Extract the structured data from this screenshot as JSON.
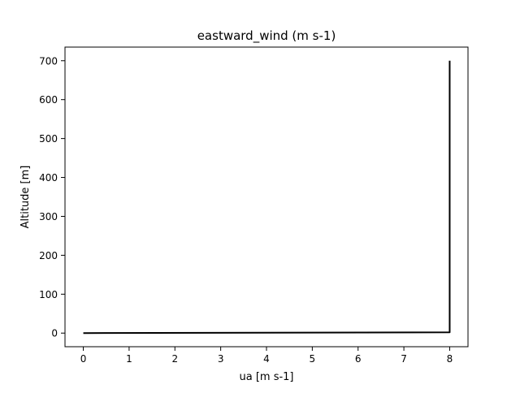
{
  "chart_data": {
    "type": "line",
    "title": "eastward_wind (m s-1)",
    "xlabel": "ua [m s-1]",
    "ylabel": "Altitude [m]",
    "xlim": [
      -0.4,
      8.4
    ],
    "ylim": [
      -35,
      735
    ],
    "xticks": [
      0,
      1,
      2,
      3,
      4,
      5,
      6,
      7,
      8
    ],
    "yticks": [
      0,
      100,
      200,
      300,
      400,
      500,
      600,
      700
    ],
    "grid": false,
    "legend": "none",
    "series": [
      {
        "color": "#000000",
        "points": [
          {
            "x": 0.0,
            "y": 0
          },
          {
            "x": 8.0,
            "y": 2
          },
          {
            "x": 8.0,
            "y": 700
          }
        ]
      }
    ]
  }
}
